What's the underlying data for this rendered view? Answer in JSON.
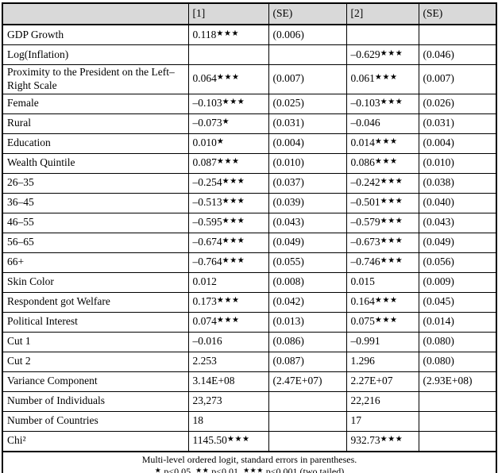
{
  "table": {
    "header": [
      "",
      "[1]",
      "(SE)",
      "[2]",
      "(SE)"
    ],
    "rows": [
      {
        "label": "GDP Growth",
        "c1": "0.118★★★",
        "s1": "(0.006)",
        "c2": "",
        "s2": ""
      },
      {
        "label": "Log(Inflation)",
        "c1": "",
        "s1": "",
        "c2": "–0.629★★★",
        "s2": "(0.046)"
      },
      {
        "label": "Proximity to the President on the Left–Right Scale",
        "c1": "0.064★★★",
        "s1": "(0.007)",
        "c2": "0.061★★★",
        "s2": "(0.007)"
      },
      {
        "label": "Female",
        "c1": "–0.103★★★",
        "s1": "(0.025)",
        "c2": "–0.103★★★",
        "s2": "(0.026)"
      },
      {
        "label": "Rural",
        "c1": "–0.073★",
        "s1": "(0.031)",
        "c2": "–0.046",
        "s2": "(0.031)"
      },
      {
        "label": "Education",
        "c1": "0.010★",
        "s1": "(0.004)",
        "c2": "0.014★★★",
        "s2": "(0.004)"
      },
      {
        "label": "Wealth Quintile",
        "c1": "0.087★★★",
        "s1": "(0.010)",
        "c2": "0.086★★★",
        "s2": "(0.010)"
      },
      {
        "label": "26–35",
        "c1": "–0.254★★★",
        "s1": "(0.037)",
        "c2": "–0.242★★★",
        "s2": "(0.038)"
      },
      {
        "label": "36–45",
        "c1": "–0.513★★★",
        "s1": "(0.039)",
        "c2": "–0.501★★★",
        "s2": "(0.040)"
      },
      {
        "label": "46–55",
        "c1": "–0.595★★★",
        "s1": "(0.043)",
        "c2": "–0.579★★★",
        "s2": "(0.043)"
      },
      {
        "label": "56–65",
        "c1": "–0.674★★★",
        "s1": "(0.049)",
        "c2": "–0.673★★★",
        "s2": "(0.049)"
      },
      {
        "label": "66+",
        "c1": "–0.764★★★",
        "s1": "(0.055)",
        "c2": "–0.746★★★",
        "s2": "(0.056)"
      },
      {
        "label": "Skin Color",
        "c1": "0.012",
        "s1": "(0.008)",
        "c2": "0.015",
        "s2": "(0.009)"
      },
      {
        "label": "Respondent got Welfare",
        "c1": "0.173★★★",
        "s1": "(0.042)",
        "c2": "0.164★★★",
        "s2": "(0.045)"
      },
      {
        "label": "Political Interest",
        "c1": "0.074★★★",
        "s1": "(0.013)",
        "c2": "0.075★★★",
        "s2": "(0.014)"
      },
      {
        "label": "Cut 1",
        "c1": "–0.016",
        "s1": "(0.086)",
        "c2": "–0.991",
        "s2": "(0.080)"
      },
      {
        "label": "Cut 2",
        "c1": "2.253",
        "s1": "(0.087)",
        "c2": "1.296",
        "s2": "(0.080)"
      },
      {
        "label": "Variance Component",
        "c1": "3.14E+08",
        "s1": "(2.47E+07)",
        "c2": "2.27E+07",
        "s2": "(2.93E+08)"
      },
      {
        "label": "Number of Individuals",
        "c1": "23,273",
        "s1": "",
        "c2": "22,216",
        "s2": ""
      },
      {
        "label": "Number of Countries",
        "c1": "18",
        "s1": "",
        "c2": "17",
        "s2": ""
      },
      {
        "label": "Chi²",
        "c1": "1145.50★★★",
        "s1": "",
        "c2": "932.73★★★",
        "s2": ""
      }
    ],
    "footer": {
      "line1": "Multi-level ordered logit, standard errors in parentheses.",
      "line2": "★ p<0.05, ★★ p<0.01, ★★★ p<0.001 (two tailed)"
    }
  },
  "colors": {
    "header_bg": "#d9d9d9",
    "border": "#000000",
    "text": "#000000",
    "page_bg": "#ffffff"
  }
}
